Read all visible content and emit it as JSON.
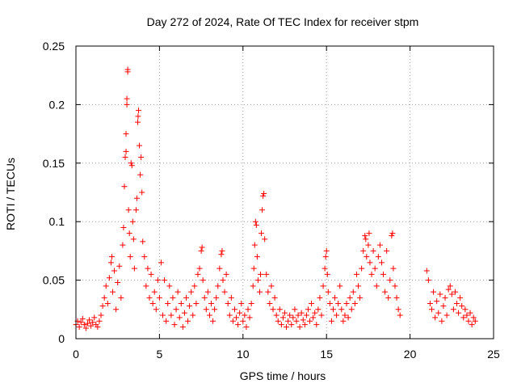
{
  "chart_data": {
    "type": "scatter",
    "title": "Day 272 of 2024, Rate Of TEC Index for receiver stpm",
    "xlabel": "GPS time / hours",
    "ylabel": "ROTI / TECUs",
    "xlim": [
      0,
      25
    ],
    "ylim": [
      0,
      0.25
    ],
    "xticks": [
      0,
      5,
      10,
      15,
      20,
      25
    ],
    "xtick_labels": [
      "0",
      "5",
      "10",
      "15",
      "20",
      "25"
    ],
    "yticks": [
      0,
      0.05,
      0.1,
      0.15,
      0.2,
      0.25
    ],
    "ytick_labels": [
      "0",
      "0.05",
      "0.1",
      "0.15",
      "0.2",
      "0.25"
    ],
    "grid": true,
    "marker": "+",
    "color": "#ff0000",
    "series": [
      {
        "name": "ROTI",
        "points": [
          [
            0.0,
            0.012
          ],
          [
            0.1,
            0.015
          ],
          [
            0.2,
            0.01
          ],
          [
            0.3,
            0.014
          ],
          [
            0.4,
            0.017
          ],
          [
            0.5,
            0.012
          ],
          [
            0.6,
            0.009
          ],
          [
            0.7,
            0.013
          ],
          [
            0.8,
            0.016
          ],
          [
            0.9,
            0.011
          ],
          [
            1.0,
            0.014
          ],
          [
            1.1,
            0.018
          ],
          [
            1.2,
            0.012
          ],
          [
            1.3,
            0.01
          ],
          [
            1.4,
            0.015
          ],
          [
            1.5,
            0.02
          ],
          [
            1.6,
            0.028
          ],
          [
            1.7,
            0.035
          ],
          [
            1.8,
            0.045
          ],
          [
            1.9,
            0.03
          ],
          [
            2.0,
            0.052
          ],
          [
            2.1,
            0.065
          ],
          [
            2.15,
            0.07
          ],
          [
            2.2,
            0.04
          ],
          [
            2.3,
            0.058
          ],
          [
            2.4,
            0.025
          ],
          [
            2.5,
            0.048
          ],
          [
            2.6,
            0.062
          ],
          [
            2.7,
            0.035
          ],
          [
            2.8,
            0.08
          ],
          [
            2.85,
            0.095
          ],
          [
            2.9,
            0.13
          ],
          [
            2.95,
            0.155
          ],
          [
            3.0,
            0.16
          ],
          [
            3.0,
            0.175
          ],
          [
            3.05,
            0.2
          ],
          [
            3.05,
            0.205
          ],
          [
            3.1,
            0.228
          ],
          [
            3.1,
            0.23
          ],
          [
            3.15,
            0.11
          ],
          [
            3.2,
            0.09
          ],
          [
            3.25,
            0.07
          ],
          [
            3.3,
            0.15
          ],
          [
            3.35,
            0.148
          ],
          [
            3.4,
            0.1
          ],
          [
            3.45,
            0.085
          ],
          [
            3.5,
            0.06
          ],
          [
            3.6,
            0.11
          ],
          [
            3.65,
            0.12
          ],
          [
            3.7,
            0.185
          ],
          [
            3.72,
            0.19
          ],
          [
            3.75,
            0.195
          ],
          [
            3.8,
            0.165
          ],
          [
            3.85,
            0.14
          ],
          [
            3.9,
            0.155
          ],
          [
            3.95,
            0.125
          ],
          [
            4.0,
            0.083
          ],
          [
            4.1,
            0.07
          ],
          [
            4.2,
            0.045
          ],
          [
            4.3,
            0.06
          ],
          [
            4.4,
            0.035
          ],
          [
            4.5,
            0.055
          ],
          [
            4.6,
            0.03
          ],
          [
            4.7,
            0.04
          ],
          [
            4.8,
            0.025
          ],
          [
            4.9,
            0.05
          ],
          [
            5.0,
            0.035
          ],
          [
            5.1,
            0.065
          ],
          [
            5.2,
            0.02
          ],
          [
            5.3,
            0.05
          ],
          [
            5.4,
            0.015
          ],
          [
            5.5,
            0.03
          ],
          [
            5.6,
            0.045
          ],
          [
            5.7,
            0.02
          ],
          [
            5.8,
            0.035
          ],
          [
            5.9,
            0.012
          ],
          [
            6.0,
            0.025
          ],
          [
            6.1,
            0.04
          ],
          [
            6.2,
            0.018
          ],
          [
            6.3,
            0.03
          ],
          [
            6.4,
            0.01
          ],
          [
            6.5,
            0.022
          ],
          [
            6.6,
            0.035
          ],
          [
            6.7,
            0.015
          ],
          [
            6.8,
            0.028
          ],
          [
            6.9,
            0.04
          ],
          [
            7.0,
            0.02
          ],
          [
            7.1,
            0.045
          ],
          [
            7.2,
            0.03
          ],
          [
            7.3,
            0.055
          ],
          [
            7.4,
            0.06
          ],
          [
            7.5,
            0.075
          ],
          [
            7.55,
            0.078
          ],
          [
            7.6,
            0.05
          ],
          [
            7.7,
            0.035
          ],
          [
            7.8,
            0.025
          ],
          [
            7.9,
            0.04
          ],
          [
            8.0,
            0.02
          ],
          [
            8.1,
            0.03
          ],
          [
            8.2,
            0.015
          ],
          [
            8.3,
            0.025
          ],
          [
            8.4,
            0.035
          ],
          [
            8.5,
            0.045
          ],
          [
            8.6,
            0.06
          ],
          [
            8.7,
            0.072
          ],
          [
            8.75,
            0.075
          ],
          [
            8.8,
            0.05
          ],
          [
            8.9,
            0.04
          ],
          [
            9.0,
            0.055
          ],
          [
            9.1,
            0.03
          ],
          [
            9.2,
            0.02
          ],
          [
            9.3,
            0.035
          ],
          [
            9.4,
            0.015
          ],
          [
            9.5,
            0.025
          ],
          [
            9.6,
            0.018
          ],
          [
            9.7,
            0.012
          ],
          [
            9.8,
            0.022
          ],
          [
            9.9,
            0.03
          ],
          [
            10.0,
            0.015
          ],
          [
            10.1,
            0.02
          ],
          [
            10.2,
            0.01
          ],
          [
            10.3,
            0.025
          ],
          [
            10.4,
            0.018
          ],
          [
            10.5,
            0.03
          ],
          [
            10.6,
            0.045
          ],
          [
            10.65,
            0.06
          ],
          [
            10.7,
            0.08
          ],
          [
            10.75,
            0.1
          ],
          [
            10.8,
            0.097
          ],
          [
            10.85,
            0.07
          ],
          [
            10.9,
            0.05
          ],
          [
            11.0,
            0.04
          ],
          [
            11.05,
            0.055
          ],
          [
            11.1,
            0.09
          ],
          [
            11.15,
            0.11
          ],
          [
            11.2,
            0.122
          ],
          [
            11.25,
            0.124
          ],
          [
            11.3,
            0.085
          ],
          [
            11.4,
            0.055
          ],
          [
            11.5,
            0.04
          ],
          [
            11.6,
            0.03
          ],
          [
            11.7,
            0.045
          ],
          [
            11.8,
            0.025
          ],
          [
            11.9,
            0.035
          ],
          [
            12.0,
            0.02
          ],
          [
            12.1,
            0.015
          ],
          [
            12.2,
            0.025
          ],
          [
            12.3,
            0.012
          ],
          [
            12.4,
            0.018
          ],
          [
            12.5,
            0.022
          ],
          [
            12.6,
            0.01
          ],
          [
            12.7,
            0.015
          ],
          [
            12.8,
            0.02
          ],
          [
            12.9,
            0.012
          ],
          [
            13.0,
            0.018
          ],
          [
            13.1,
            0.025
          ],
          [
            13.2,
            0.015
          ],
          [
            13.3,
            0.02
          ],
          [
            13.4,
            0.01
          ],
          [
            13.5,
            0.022
          ],
          [
            13.6,
            0.016
          ],
          [
            13.7,
            0.012
          ],
          [
            13.8,
            0.02
          ],
          [
            13.9,
            0.025
          ],
          [
            14.0,
            0.015
          ],
          [
            14.1,
            0.03
          ],
          [
            14.2,
            0.018
          ],
          [
            14.3,
            0.022
          ],
          [
            14.4,
            0.012
          ],
          [
            14.5,
            0.025
          ],
          [
            14.6,
            0.035
          ],
          [
            14.7,
            0.02
          ],
          [
            14.8,
            0.045
          ],
          [
            14.9,
            0.06
          ],
          [
            14.95,
            0.07
          ],
          [
            15.0,
            0.075
          ],
          [
            15.05,
            0.055
          ],
          [
            15.1,
            0.04
          ],
          [
            15.2,
            0.03
          ],
          [
            15.3,
            0.015
          ],
          [
            15.4,
            0.025
          ],
          [
            15.5,
            0.035
          ],
          [
            15.6,
            0.02
          ],
          [
            15.7,
            0.03
          ],
          [
            15.8,
            0.045
          ],
          [
            15.9,
            0.025
          ],
          [
            16.0,
            0.015
          ],
          [
            16.1,
            0.02
          ],
          [
            16.2,
            0.03
          ],
          [
            16.3,
            0.018
          ],
          [
            16.4,
            0.035
          ],
          [
            16.5,
            0.025
          ],
          [
            16.6,
            0.04
          ],
          [
            16.7,
            0.03
          ],
          [
            16.8,
            0.055
          ],
          [
            16.9,
            0.045
          ],
          [
            17.0,
            0.035
          ],
          [
            17.1,
            0.06
          ],
          [
            17.2,
            0.075
          ],
          [
            17.3,
            0.088
          ],
          [
            17.35,
            0.085
          ],
          [
            17.4,
            0.07
          ],
          [
            17.5,
            0.08
          ],
          [
            17.55,
            0.09
          ],
          [
            17.6,
            0.065
          ],
          [
            17.7,
            0.055
          ],
          [
            17.8,
            0.075
          ],
          [
            17.9,
            0.06
          ],
          [
            18.0,
            0.045
          ],
          [
            18.1,
            0.07
          ],
          [
            18.2,
            0.08
          ],
          [
            18.3,
            0.065
          ],
          [
            18.4,
            0.055
          ],
          [
            18.5,
            0.04
          ],
          [
            18.6,
            0.075
          ],
          [
            18.7,
            0.035
          ],
          [
            18.8,
            0.05
          ],
          [
            18.9,
            0.088
          ],
          [
            18.95,
            0.09
          ],
          [
            19.0,
            0.06
          ],
          [
            19.1,
            0.045
          ],
          [
            19.2,
            0.035
          ],
          [
            19.3,
            0.025
          ],
          [
            19.4,
            0.02
          ],
          [
            21.0,
            0.058
          ],
          [
            21.1,
            0.05
          ],
          [
            21.2,
            0.03
          ],
          [
            21.3,
            0.025
          ],
          [
            21.4,
            0.04
          ],
          [
            21.5,
            0.018
          ],
          [
            21.6,
            0.032
          ],
          [
            21.7,
            0.022
          ],
          [
            21.8,
            0.038
          ],
          [
            21.9,
            0.015
          ],
          [
            22.0,
            0.028
          ],
          [
            22.1,
            0.035
          ],
          [
            22.2,
            0.02
          ],
          [
            22.3,
            0.042
          ],
          [
            22.4,
            0.045
          ],
          [
            22.5,
            0.038
          ],
          [
            22.6,
            0.025
          ],
          [
            22.7,
            0.04
          ],
          [
            22.8,
            0.03
          ],
          [
            22.9,
            0.022
          ],
          [
            23.0,
            0.035
          ],
          [
            23.1,
            0.028
          ],
          [
            23.2,
            0.018
          ],
          [
            23.3,
            0.025
          ],
          [
            23.4,
            0.02
          ],
          [
            23.5,
            0.015
          ],
          [
            23.6,
            0.022
          ],
          [
            23.7,
            0.012
          ],
          [
            23.8,
            0.018
          ],
          [
            23.9,
            0.015
          ]
        ]
      }
    ]
  }
}
